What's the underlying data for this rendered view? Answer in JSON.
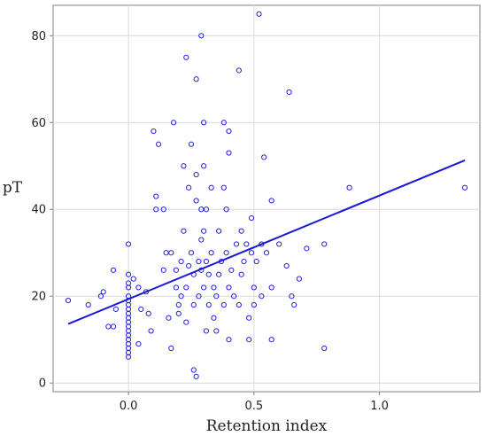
{
  "chart_data": {
    "type": "scatter",
    "title": "",
    "xlabel": "Retention index",
    "ylabel": "pT",
    "xlim": [
      -0.3,
      1.4
    ],
    "ylim": [
      -2,
      87
    ],
    "xticks": [
      0.0,
      0.5,
      1.0
    ],
    "xtick_labels": [
      "0.0",
      "0.5",
      "1.0"
    ],
    "yticks": [
      0,
      20,
      40,
      60,
      80
    ],
    "ytick_labels": [
      "0",
      "20",
      "40",
      "60",
      "80"
    ],
    "grid": true,
    "legend": "none",
    "colors": {
      "points": "#2020e0",
      "fit_line": "#1a1ad6",
      "grid": "#d9d9d9",
      "axis": "#808080",
      "text": "#222222"
    },
    "series": [
      {
        "kind": "points",
        "points": [
          [
            -0.24,
            19
          ],
          [
            -0.16,
            18
          ],
          [
            -0.11,
            20
          ],
          [
            -0.1,
            21
          ],
          [
            -0.08,
            13
          ],
          [
            -0.06,
            13
          ],
          [
            -0.06,
            26
          ],
          [
            -0.05,
            17
          ],
          [
            0.0,
            6
          ],
          [
            0.0,
            7
          ],
          [
            0.0,
            8
          ],
          [
            0.0,
            9
          ],
          [
            0.0,
            10
          ],
          [
            0.0,
            11
          ],
          [
            0.0,
            12
          ],
          [
            0.0,
            13
          ],
          [
            0.0,
            14
          ],
          [
            0.0,
            15
          ],
          [
            0.0,
            16
          ],
          [
            0.0,
            17
          ],
          [
            0.0,
            18
          ],
          [
            0.0,
            19
          ],
          [
            0.0,
            20
          ],
          [
            0.0,
            22
          ],
          [
            0.0,
            23
          ],
          [
            0.0,
            25
          ],
          [
            0.0,
            32
          ],
          [
            0.02,
            24
          ],
          [
            0.04,
            22
          ],
          [
            0.04,
            9
          ],
          [
            0.05,
            17
          ],
          [
            0.07,
            21
          ],
          [
            0.08,
            16
          ],
          [
            0.09,
            12
          ],
          [
            0.1,
            58
          ],
          [
            0.11,
            43
          ],
          [
            0.11,
            40
          ],
          [
            0.12,
            55
          ],
          [
            0.14,
            26
          ],
          [
            0.14,
            40
          ],
          [
            0.15,
            30
          ],
          [
            0.16,
            15
          ],
          [
            0.17,
            30
          ],
          [
            0.17,
            8
          ],
          [
            0.18,
            60
          ],
          [
            0.19,
            26
          ],
          [
            0.19,
            22
          ],
          [
            0.2,
            18
          ],
          [
            0.2,
            16
          ],
          [
            0.21,
            28
          ],
          [
            0.21,
            20
          ],
          [
            0.22,
            50
          ],
          [
            0.22,
            35
          ],
          [
            0.23,
            75
          ],
          [
            0.23,
            22
          ],
          [
            0.23,
            14
          ],
          [
            0.24,
            27
          ],
          [
            0.24,
            45
          ],
          [
            0.25,
            55
          ],
          [
            0.25,
            30
          ],
          [
            0.26,
            25
          ],
          [
            0.26,
            18
          ],
          [
            0.26,
            3
          ],
          [
            0.27,
            48
          ],
          [
            0.27,
            42
          ],
          [
            0.27,
            70
          ],
          [
            0.27,
            1.5
          ],
          [
            0.28,
            28
          ],
          [
            0.28,
            20
          ],
          [
            0.29,
            80
          ],
          [
            0.29,
            40
          ],
          [
            0.29,
            33
          ],
          [
            0.29,
            26
          ],
          [
            0.3,
            60
          ],
          [
            0.3,
            50
          ],
          [
            0.3,
            35
          ],
          [
            0.3,
            22
          ],
          [
            0.31,
            40
          ],
          [
            0.31,
            28
          ],
          [
            0.31,
            12
          ],
          [
            0.32,
            25
          ],
          [
            0.32,
            18
          ],
          [
            0.33,
            45
          ],
          [
            0.33,
            30
          ],
          [
            0.34,
            22
          ],
          [
            0.34,
            15
          ],
          [
            0.35,
            20
          ],
          [
            0.35,
            12
          ],
          [
            0.36,
            35
          ],
          [
            0.36,
            25
          ],
          [
            0.37,
            28
          ],
          [
            0.38,
            60
          ],
          [
            0.38,
            45
          ],
          [
            0.38,
            18
          ],
          [
            0.39,
            40
          ],
          [
            0.39,
            30
          ],
          [
            0.4,
            58
          ],
          [
            0.4,
            53
          ],
          [
            0.4,
            22
          ],
          [
            0.4,
            10
          ],
          [
            0.41,
            26
          ],
          [
            0.42,
            20
          ],
          [
            0.43,
            32
          ],
          [
            0.44,
            72
          ],
          [
            0.44,
            18
          ],
          [
            0.45,
            35
          ],
          [
            0.45,
            25
          ],
          [
            0.46,
            28
          ],
          [
            0.47,
            32
          ],
          [
            0.48,
            15
          ],
          [
            0.48,
            10
          ],
          [
            0.49,
            38
          ],
          [
            0.49,
            30
          ],
          [
            0.5,
            22
          ],
          [
            0.5,
            18
          ],
          [
            0.51,
            28
          ],
          [
            0.52,
            85
          ],
          [
            0.53,
            32
          ],
          [
            0.53,
            20
          ],
          [
            0.54,
            52
          ],
          [
            0.55,
            30
          ],
          [
            0.57,
            42
          ],
          [
            0.57,
            22
          ],
          [
            0.57,
            10
          ],
          [
            0.6,
            32
          ],
          [
            0.63,
            27
          ],
          [
            0.64,
            67
          ],
          [
            0.65,
            20
          ],
          [
            0.66,
            18
          ],
          [
            0.68,
            24
          ],
          [
            0.71,
            31
          ],
          [
            0.78,
            32
          ],
          [
            0.78,
            8
          ],
          [
            0.88,
            45
          ],
          [
            1.34,
            45
          ]
        ]
      },
      {
        "kind": "fit_line",
        "x": [
          -0.24,
          1.34
        ],
        "y": [
          13.6,
          51.3
        ]
      }
    ]
  }
}
